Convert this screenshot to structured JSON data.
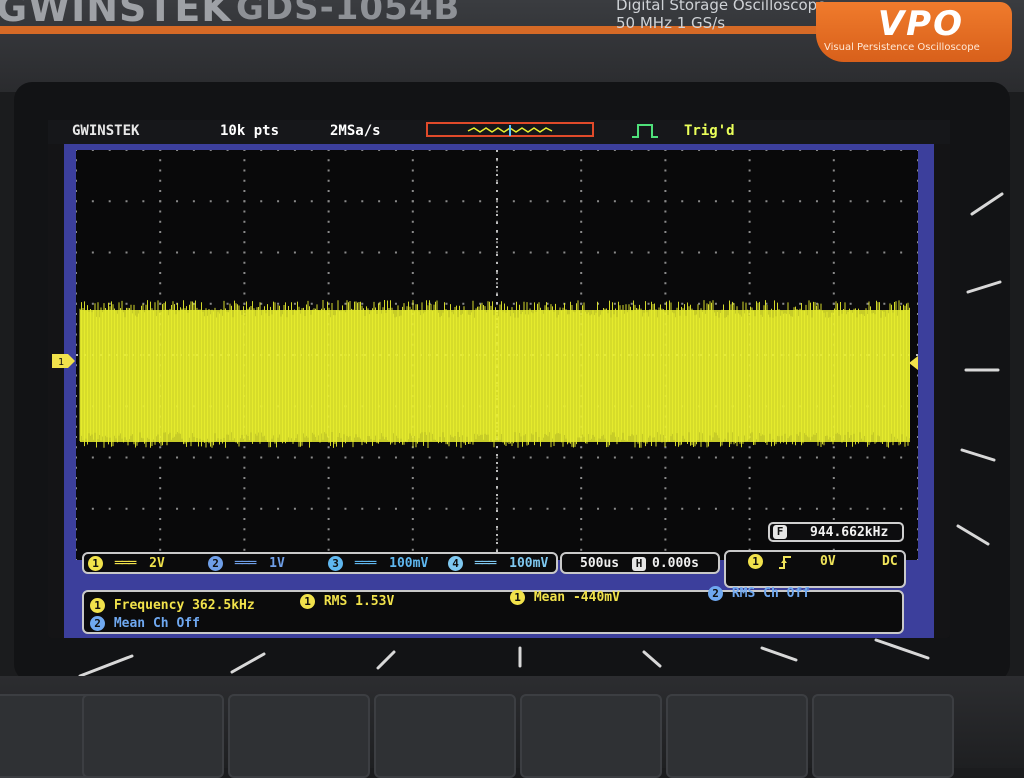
{
  "device": {
    "brand": "GWINSTEK",
    "model": "GDS-1054B",
    "description_line1": "Digital Storage Oscilloscope",
    "description_line2": "50 MHz  1 GS/s",
    "vpo_logo": "VPO",
    "vpo_caption": "Visual Persistence Oscilloscope"
  },
  "screen": {
    "header": {
      "logo": "GWINSTEK",
      "record_length": "10k pts",
      "sample_rate": "2MSa/s",
      "trigger_status": "Trig'd"
    },
    "grid": {
      "divisions_x": 10,
      "divisions_y": 8
    },
    "waveform": {
      "channel": 1,
      "color": "#e9ef2e",
      "style": "dense noise band"
    },
    "markers": {
      "ch1_ground": "1"
    },
    "frequency_counter": {
      "icon": "F",
      "value": "944.662kHz"
    },
    "channels": [
      {
        "number": "1",
        "coupling_glyph": "═══",
        "scale": "2V",
        "color": "#f1e24b"
      },
      {
        "number": "2",
        "coupling_glyph": "═══",
        "scale": "1V",
        "color": "#6f9fe8"
      },
      {
        "number": "3",
        "coupling_glyph": "═══",
        "scale": "100mV",
        "color": "#5fb7ef"
      },
      {
        "number": "4",
        "coupling_glyph": "═══",
        "scale": "100mV",
        "color": "#7fc8f0"
      }
    ],
    "timebase": {
      "scale": "500us",
      "icon": "H",
      "position": "0.000s"
    },
    "trigger": {
      "source": "1",
      "slope_icon": "rising-edge-icon",
      "level": "0V",
      "coupling": "DC"
    },
    "measurements": [
      {
        "source": "1",
        "label": "Frequency 362.5kHz",
        "color": "#f1e24b"
      },
      {
        "source": "1",
        "label": "RMS 1.53V",
        "color": "#f1e24b"
      },
      {
        "source": "1",
        "label": "Mean -440mV",
        "color": "#f1e24b"
      },
      {
        "source": "2",
        "label": "RMS Ch Off",
        "color": "#6fa8f0"
      },
      {
        "source": "2",
        "label": "Mean Ch Off",
        "color": "#6fa8f0"
      }
    ]
  }
}
